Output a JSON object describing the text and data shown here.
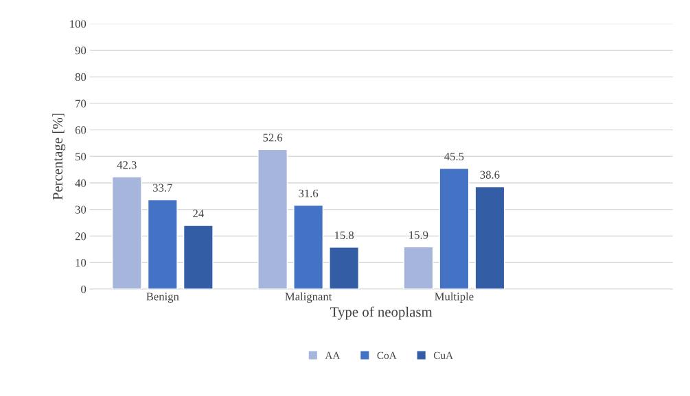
{
  "chart_data": {
    "type": "bar",
    "xlabel": "Type of neoplasm",
    "ylabel": "Percentage [%]",
    "categories": [
      "Benign",
      "Malignant",
      "Multiple",
      null
    ],
    "series": [
      {
        "name": "AA",
        "color": "#a5b5dc",
        "values": [
          42.3,
          52.6,
          15.9,
          null
        ]
      },
      {
        "name": "CoA",
        "color": "#4472c4",
        "values": [
          33.7,
          31.6,
          45.5,
          null
        ]
      },
      {
        "name": "CuA",
        "color": "#335ea6",
        "values": [
          24,
          15.8,
          38.6,
          null
        ]
      }
    ],
    "ylim": [
      0,
      100
    ],
    "yticks": [
      0,
      10,
      20,
      30,
      40,
      50,
      60,
      70,
      80,
      90,
      100
    ],
    "grid": "y",
    "legend": "bottom",
    "data_labels": true
  }
}
